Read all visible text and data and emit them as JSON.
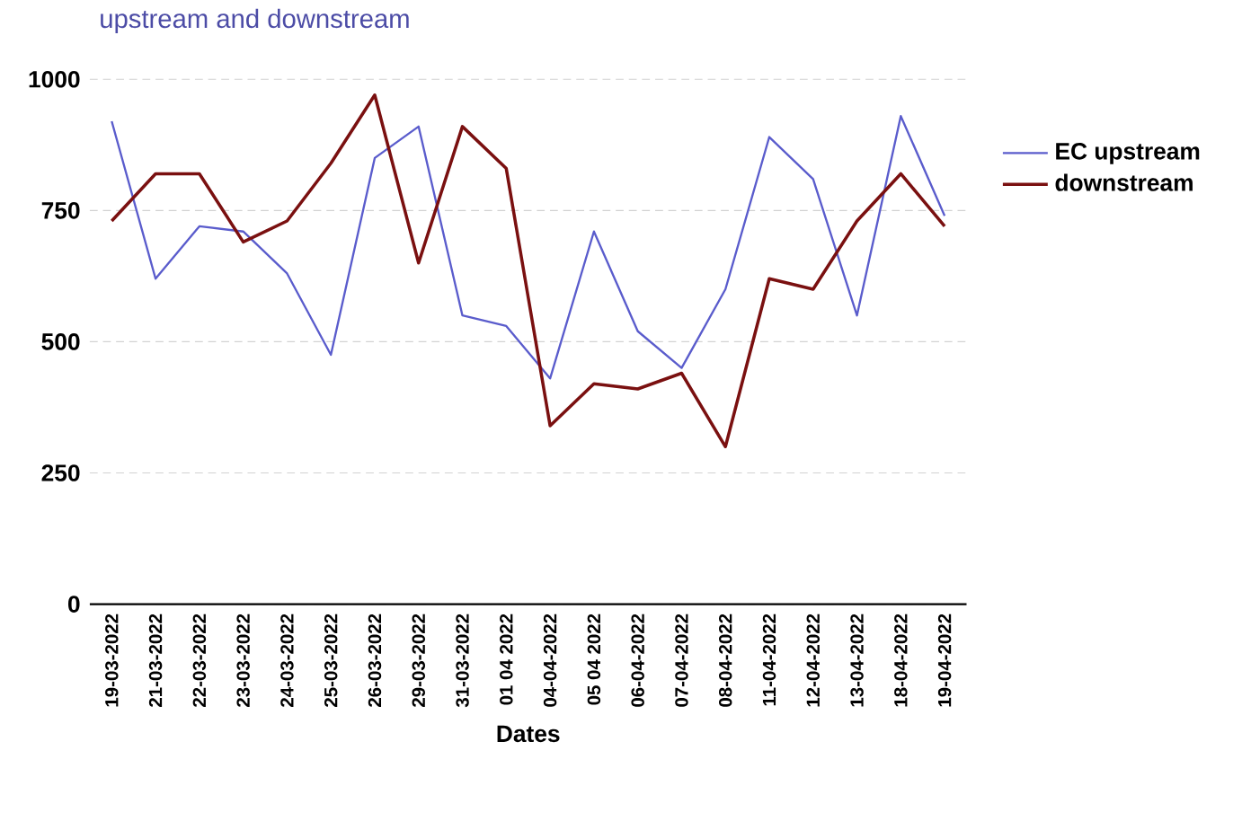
{
  "chart_data": {
    "type": "line",
    "title": "upstream and downstream",
    "xlabel": "Dates",
    "categories": [
      "19-03-2022",
      "21-03-2022",
      "22-03-2022",
      "23-03-2022",
      "24-03-2022",
      "25-03-2022",
      "26-03-2022",
      "29-03-2022",
      "31-03-2022",
      "01 04 2022",
      "04-04-2022",
      "05 04 2022",
      "06-04-2022",
      "07-04-2022",
      "08-04-2022",
      "11-04-2022",
      "12-04-2022",
      "13-04-2022",
      "18-04-2022",
      "19-04-2022"
    ],
    "series": [
      {
        "name": "EC upstream",
        "color": "#5a5ccc",
        "values": [
          920,
          620,
          720,
          710,
          630,
          475,
          850,
          910,
          550,
          530,
          430,
          710,
          520,
          450,
          600,
          890,
          810,
          550,
          930,
          740
        ]
      },
      {
        "name": "downstream",
        "color": "#7a1010",
        "values": [
          730,
          820,
          820,
          690,
          730,
          840,
          970,
          650,
          910,
          830,
          340,
          420,
          410,
          440,
          300,
          620,
          600,
          730,
          820,
          720
        ]
      }
    ],
    "ylim": [
      0,
      1000
    ],
    "yticks": [
      0,
      250,
      500,
      750,
      1000
    ],
    "grid": "y",
    "legend": "right",
    "marker": "none"
  }
}
